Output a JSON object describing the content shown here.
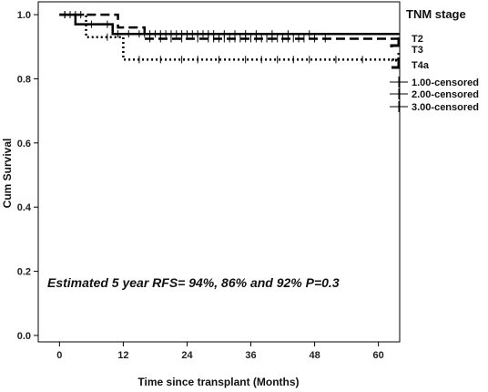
{
  "chart_data": {
    "type": "line",
    "title": "",
    "xlabel": "Time since transplant (Months)",
    "ylabel": "Cum Survival",
    "xlim": [
      -4,
      64
    ],
    "ylim": [
      -0.02,
      1.04
    ],
    "xticks": [
      0,
      12,
      24,
      36,
      48,
      60
    ],
    "yticks": [
      0.0,
      0.2,
      0.4,
      0.6,
      0.8,
      1.0
    ],
    "xtick_labels": [
      "0",
      "12",
      "24",
      "36",
      "48",
      "60"
    ],
    "ytick_labels": [
      "0.0",
      "0.2",
      "0.4",
      "0.6",
      "0.8",
      "1.0"
    ],
    "grid": false,
    "legend_title": "TNM stage",
    "legend_position": "right",
    "annotation": "Estimated 5 year RFS= 94%, 86% and 92% P=0.3",
    "series": [
      {
        "name": "T2",
        "style": "solid",
        "steps": [
          [
            0,
            1.0
          ],
          [
            3,
            0.97
          ],
          [
            10,
            0.94
          ],
          [
            64,
            0.94
          ]
        ],
        "censored": [
          2,
          6,
          9,
          11,
          13,
          15,
          16,
          17,
          18,
          19,
          20,
          21,
          22,
          23,
          24,
          25,
          26,
          27,
          28,
          29,
          31,
          33,
          35,
          37,
          40,
          43,
          47
        ]
      },
      {
        "name": "T3",
        "style": "dashed",
        "steps": [
          [
            0,
            1.0
          ],
          [
            11,
            0.96
          ],
          [
            16,
            0.925
          ],
          [
            64,
            0.925
          ]
        ],
        "censored": [
          1,
          17,
          19,
          21,
          23,
          26,
          28,
          29,
          30,
          31,
          32,
          33,
          34,
          35,
          36,
          37,
          38,
          39,
          40,
          41,
          42,
          43,
          44,
          45,
          46,
          48,
          50
        ]
      },
      {
        "name": "T4a",
        "style": "dotted",
        "steps": [
          [
            0,
            1.0
          ],
          [
            5,
            0.93
          ],
          [
            12,
            0.86
          ],
          [
            64,
            0.86
          ]
        ],
        "censored": [
          1,
          3,
          4,
          9,
          15,
          19,
          23,
          26,
          30,
          35,
          38,
          41,
          44,
          47,
          52,
          57
        ]
      }
    ],
    "censor_legend": [
      "1.00-censored",
      "2.00-censored",
      "3.00-censored"
    ]
  }
}
